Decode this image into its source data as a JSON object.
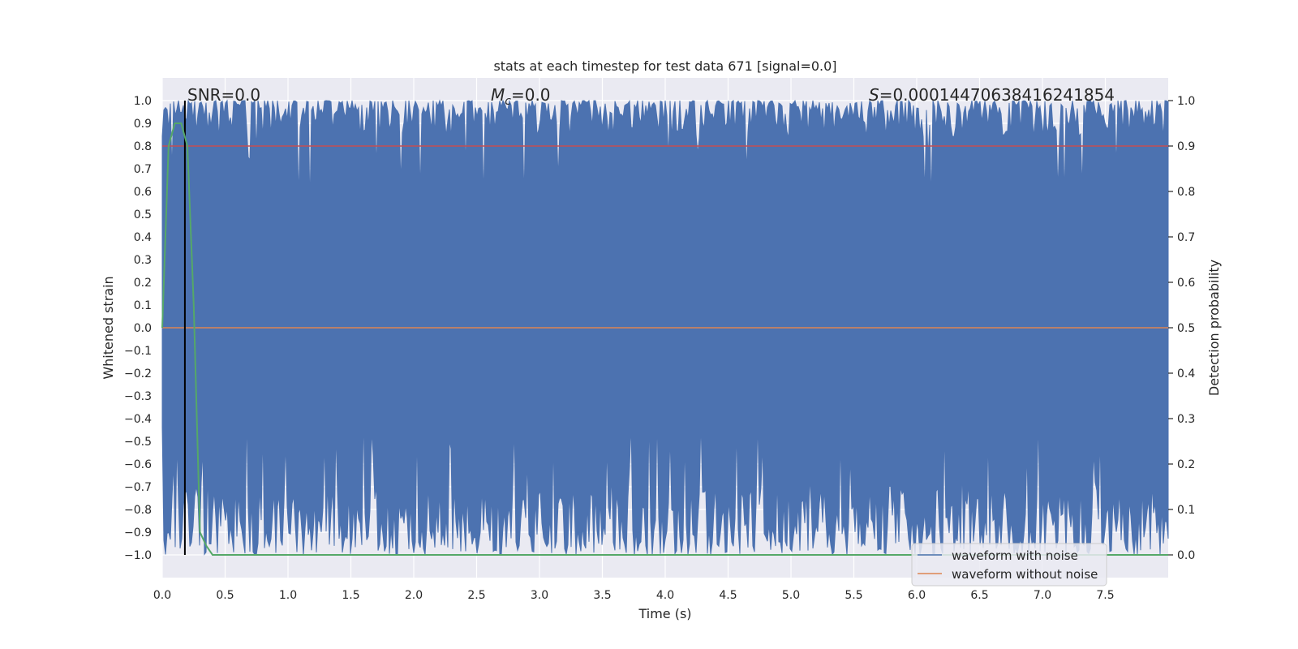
{
  "chart_data": {
    "type": "line",
    "title": "stats at each timestep for test data 671 [signal=0.0]",
    "xlabel": "Time (s)",
    "ylabel": "Whitened strain",
    "y2label": "Detection probability",
    "xlim": [
      0.0,
      8.0
    ],
    "ylim": [
      -1.1,
      1.1
    ],
    "y2lim": [
      -0.05,
      1.05
    ],
    "grid": true,
    "legend_position": "bottom-right",
    "x_ticks": [
      "0.0",
      "0.5",
      "1.0",
      "1.5",
      "2.0",
      "2.5",
      "3.0",
      "3.5",
      "4.0",
      "4.5",
      "5.0",
      "5.5",
      "6.0",
      "6.5",
      "7.0",
      "7.5"
    ],
    "y_ticks": [
      "1.0",
      "0.9",
      "0.8",
      "0.7",
      "0.6",
      "0.5",
      "0.4",
      "0.3",
      "0.2",
      "0.1",
      "0.0",
      "−0.1",
      "−0.2",
      "−0.3",
      "−0.4",
      "−0.5",
      "−0.6",
      "−0.7",
      "−0.8",
      "−0.9",
      "−1.0"
    ],
    "y2_ticks": [
      "1.0",
      "0.9",
      "0.8",
      "0.7",
      "0.6",
      "0.5",
      "0.4",
      "0.3",
      "0.2",
      "0.1",
      "0.0"
    ],
    "annotations": {
      "snr": "SNR=0.0",
      "mc_symbol": "M",
      "mc_sub": "c",
      "mc_value": "=0.0",
      "s_symbol": "S",
      "s_value": "=0.00014470638416241854"
    },
    "series": [
      {
        "name": "waveform with noise",
        "color": "#4c72b0",
        "kind": "whitened noise, clipped to [-1, 1]",
        "approx_envelope": [
          -1.0,
          1.0
        ]
      },
      {
        "name": "waveform without noise",
        "color": "#dd8452",
        "values_const": 0.0
      },
      {
        "name": "detection probability",
        "color": "#55a868",
        "axis": "right",
        "x": [
          0.0,
          0.05,
          0.1,
          0.15,
          0.2,
          0.25,
          0.3,
          0.35,
          0.4,
          8.0
        ],
        "values": [
          0.5,
          0.9,
          0.95,
          0.95,
          0.9,
          0.55,
          0.05,
          0.02,
          0.0,
          0.0
        ]
      },
      {
        "name": "threshold",
        "color": "#c44e52",
        "axis": "right",
        "values_const": 0.9
      },
      {
        "name": "marker",
        "color": "#000000",
        "x_const": 0.18
      }
    ],
    "legend": [
      "waveform with noise",
      "waveform without noise"
    ]
  }
}
